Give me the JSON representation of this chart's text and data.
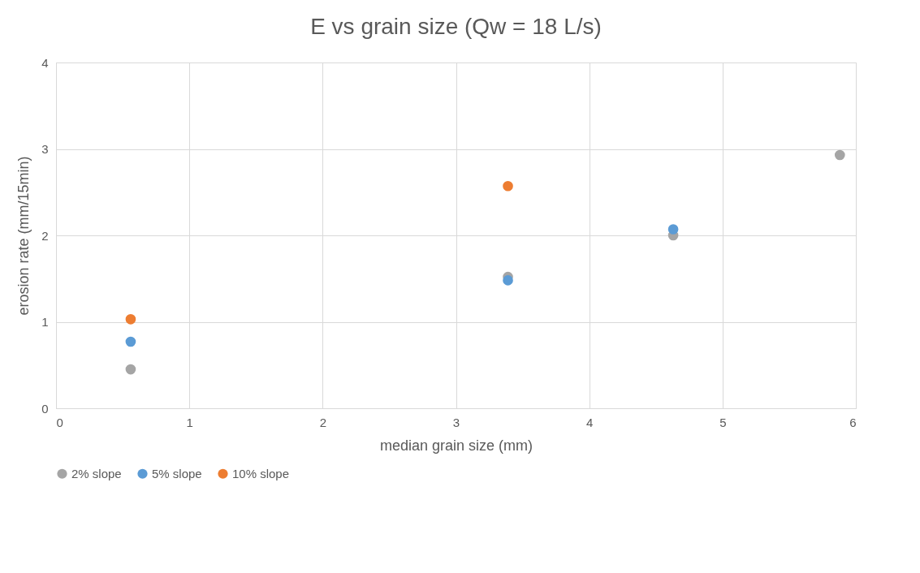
{
  "chart_data": {
    "type": "scatter",
    "title": "E vs grain size (Qw = 18 L/s)",
    "xlabel": "median grain size (mm)",
    "ylabel": "erosion rate (mm/15min)",
    "xlim": [
      0,
      6
    ],
    "xticks": [
      0,
      1,
      2,
      3,
      4,
      5,
      6
    ],
    "ylim": [
      0,
      4
    ],
    "yticks": [
      0,
      1,
      2,
      3,
      4
    ],
    "grid": true,
    "legend": "bottom",
    "marker": "circle",
    "series": [
      {
        "name": "2% slope",
        "color": "#a5a5a5",
        "x": [
          0.56,
          3.39,
          4.63,
          5.88
        ],
        "values": [
          0.45,
          1.52,
          2.0,
          2.93
        ]
      },
      {
        "name": "5% slope",
        "color": "#5b9bd5",
        "x": [
          0.56,
          3.39,
          4.63
        ],
        "values": [
          0.77,
          1.48,
          2.07
        ]
      },
      {
        "name": "10% slope",
        "color": "#ed7d31",
        "x": [
          0.56,
          3.39
        ],
        "values": [
          1.03,
          2.57
        ]
      }
    ]
  }
}
